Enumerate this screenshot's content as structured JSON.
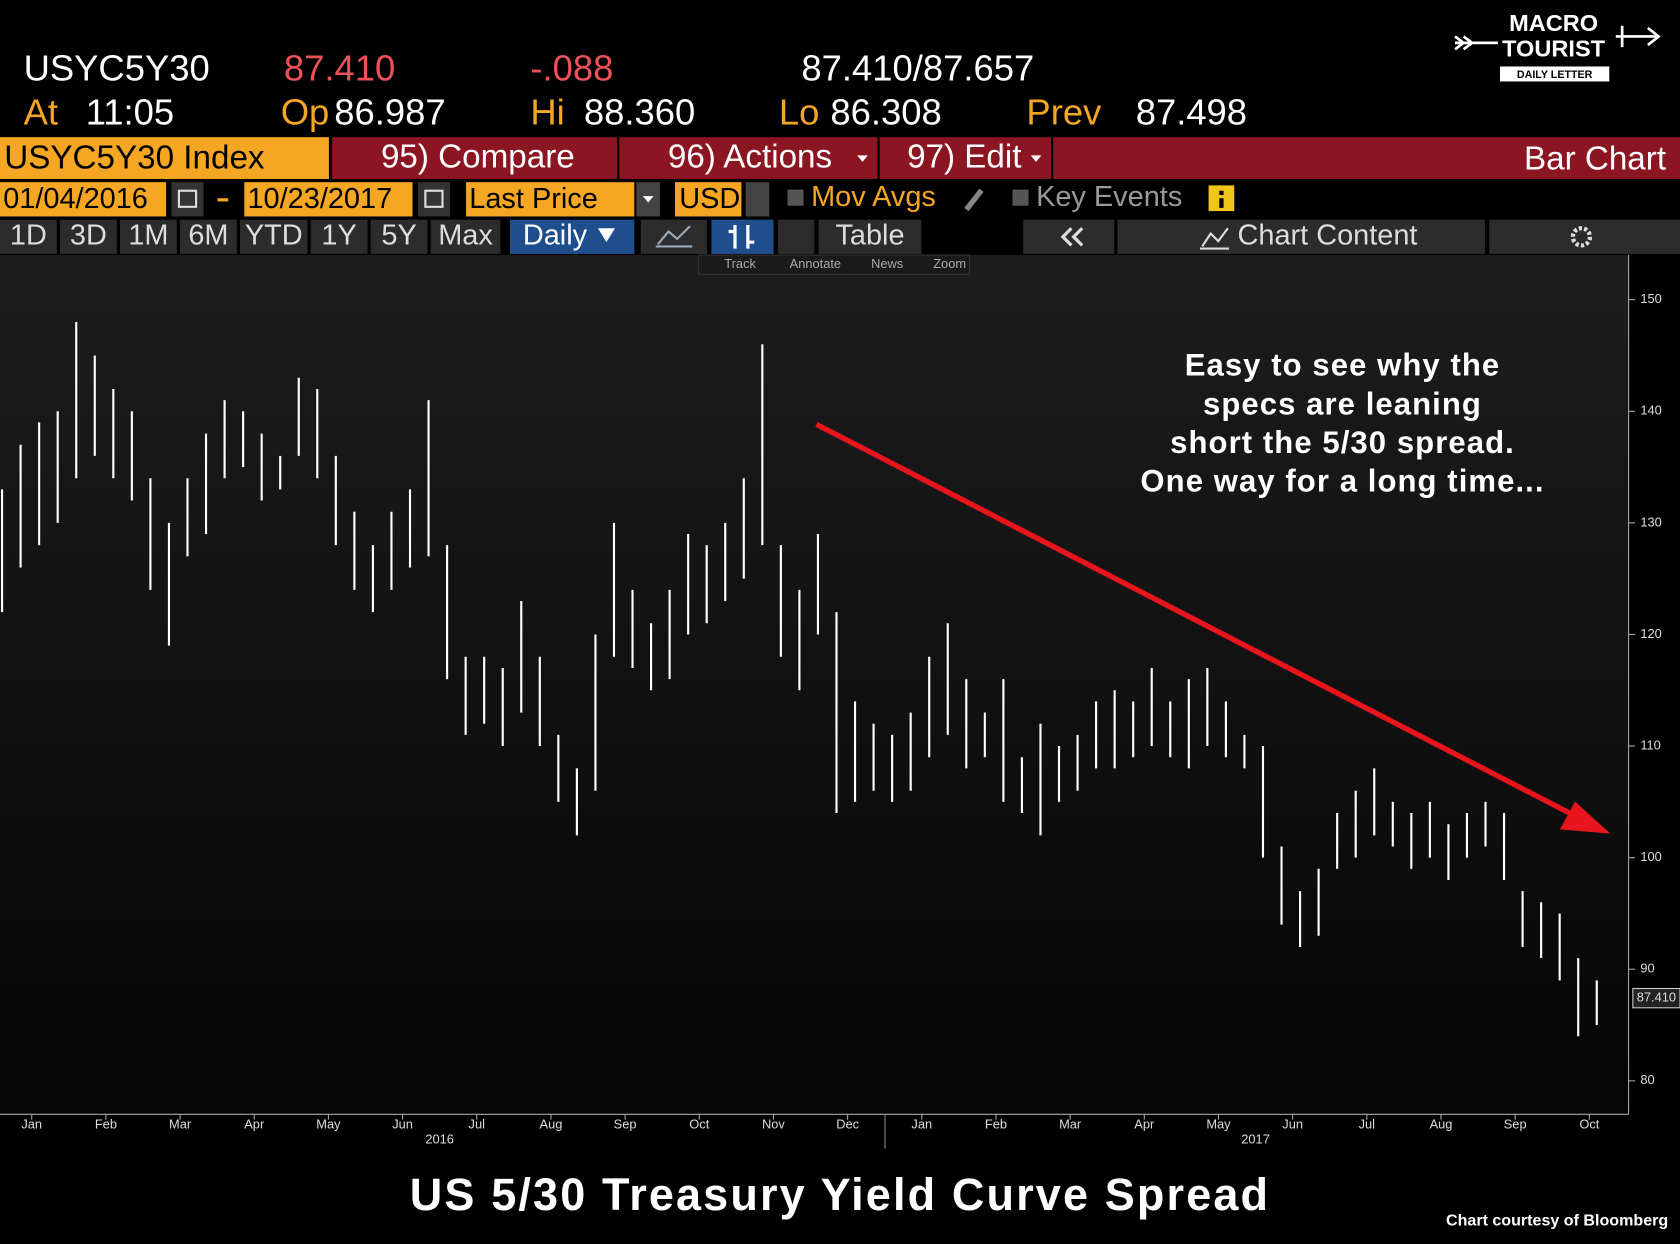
{
  "header": {
    "ticker": "USYC5Y30",
    "last": "87.410",
    "change": "-.088",
    "bid_ask": "87.410/87.657",
    "time_label": "At",
    "time": "11:05",
    "open_label": "Op",
    "open": "86.987",
    "high_label": "Hi",
    "high": "88.360",
    "low_label": "Lo",
    "low": "86.308",
    "prev_label": "Prev",
    "prev": "87.498"
  },
  "toolbar": {
    "security": "USYC5Y30 Index",
    "compare": "95) Compare",
    "actions": "96) Actions",
    "edit": "97) Edit",
    "chart_type": "Bar Chart",
    "start_date": "01/04/2016",
    "end_date": "10/23/2017",
    "field": "Last Price",
    "currency": "USD",
    "mov_avgs": "Mov Avgs",
    "key_events": "Key Events",
    "periods": [
      "1D",
      "3D",
      "1M",
      "6M",
      "YTD",
      "1Y",
      "5Y",
      "Max"
    ],
    "frequency": "Daily",
    "table": "Table",
    "chart_content": "Chart Content",
    "tools": [
      "Track",
      "Annotate",
      "News",
      "Zoom"
    ]
  },
  "logo": {
    "line1": "MACRO",
    "line2": "TOURIST",
    "line3": "DAILY LETTER"
  },
  "chart_data": {
    "type": "hilo",
    "title": "US 5/30 Treasury Yield Curve Spread",
    "credit": "Chart courtesy of Bloomberg",
    "annotation": [
      "Easy to see why the",
      "specs are leaning",
      "short the 5/30 spread.",
      "One way for a long time..."
    ],
    "color": "#ffffff",
    "x": [
      0.1,
      0.35,
      0.6,
      0.85,
      1.1,
      1.35,
      1.6,
      1.85,
      2.1,
      2.35,
      2.6,
      2.85,
      3.1,
      3.35,
      3.6,
      3.85,
      4.1,
      4.35,
      4.6,
      4.85,
      5.1,
      5.35,
      5.6,
      5.85,
      6.1,
      6.35,
      6.6,
      6.85,
      7.1,
      7.35,
      7.6,
      7.85,
      8.1,
      8.35,
      8.6,
      8.85,
      9.1,
      9.35,
      9.6,
      9.85,
      10.1,
      10.35,
      10.6,
      10.85,
      11.1,
      11.35,
      11.6,
      11.85,
      12.1,
      12.35,
      12.6,
      12.85,
      13.1,
      13.35,
      13.6,
      13.85,
      14.1,
      14.35,
      14.6,
      14.85,
      15.1,
      15.35,
      15.6,
      15.85,
      16.1,
      16.35,
      16.6,
      16.85,
      17.1,
      17.35,
      17.6,
      17.85,
      18.1,
      18.35,
      18.6,
      18.85,
      19.1,
      19.35,
      19.6,
      19.85,
      20.1,
      20.35,
      20.6,
      20.85,
      21.1,
      21.35,
      21.6
    ],
    "high": [
      133,
      137,
      139,
      140,
      148,
      145,
      142,
      140,
      134,
      130,
      134,
      138,
      141,
      140,
      138,
      136,
      143,
      142,
      136,
      131,
      128,
      131,
      133,
      141,
      128,
      118,
      118,
      117,
      123,
      118,
      111,
      108,
      120,
      130,
      124,
      121,
      124,
      129,
      128,
      130,
      134,
      146,
      128,
      124,
      129,
      122,
      114,
      112,
      111,
      113,
      118,
      121,
      116,
      113,
      116,
      109,
      112,
      110,
      111,
      114,
      115,
      114,
      117,
      114,
      116,
      117,
      114,
      111,
      110,
      101,
      97,
      99,
      104,
      106,
      108,
      105,
      104,
      105,
      103,
      104,
      105,
      104,
      97,
      96,
      95,
      91,
      89
    ],
    "low": [
      122,
      126,
      128,
      130,
      134,
      136,
      134,
      132,
      124,
      119,
      127,
      129,
      134,
      135,
      132,
      133,
      136,
      134,
      128,
      124,
      122,
      124,
      126,
      127,
      116,
      111,
      112,
      110,
      113,
      110,
      105,
      102,
      106,
      118,
      117,
      115,
      116,
      120,
      121,
      123,
      125,
      128,
      118,
      115,
      120,
      104,
      105,
      106,
      105,
      106,
      109,
      111,
      108,
      109,
      105,
      104,
      102,
      105,
      106,
      108,
      108,
      109,
      110,
      109,
      108,
      110,
      109,
      108,
      100,
      94,
      92,
      93,
      99,
      100,
      102,
      101,
      99,
      100,
      98,
      100,
      101,
      98,
      92,
      91,
      89,
      84,
      85
    ],
    "last_marker": {
      "value": 87.41,
      "label": "87.410"
    },
    "xlim": [
      0,
      22
    ],
    "xticks": [
      {
        "value": 0.5,
        "label": "Jan"
      },
      {
        "value": 1.5,
        "label": "Feb"
      },
      {
        "value": 2.5,
        "label": "Mar"
      },
      {
        "value": 3.5,
        "label": "Apr"
      },
      {
        "value": 4.5,
        "label": "May"
      },
      {
        "value": 5.5,
        "label": "Jun"
      },
      {
        "value": 6.5,
        "label": "Jul"
      },
      {
        "value": 7.5,
        "label": "Aug"
      },
      {
        "value": 8.5,
        "label": "Sep"
      },
      {
        "value": 9.5,
        "label": "Oct"
      },
      {
        "value": 10.5,
        "label": "Nov"
      },
      {
        "value": 11.5,
        "label": "Dec"
      },
      {
        "value": 12.5,
        "label": "Jan"
      },
      {
        "value": 13.5,
        "label": "Feb"
      },
      {
        "value": 14.5,
        "label": "Mar"
      },
      {
        "value": 15.5,
        "label": "Apr"
      },
      {
        "value": 16.5,
        "label": "May"
      },
      {
        "value": 17.5,
        "label": "Jun"
      },
      {
        "value": 18.5,
        "label": "Jul"
      },
      {
        "value": 19.5,
        "label": "Aug"
      },
      {
        "value": 20.5,
        "label": "Sep"
      },
      {
        "value": 21.5,
        "label": "Oct"
      }
    ],
    "x_groups": [
      {
        "value": 6,
        "label": "2016"
      },
      {
        "value": 17,
        "label": "2017"
      }
    ],
    "ylim": [
      77,
      154
    ],
    "yticks": [
      80,
      90,
      100,
      110,
      120,
      130,
      140,
      150
    ]
  }
}
